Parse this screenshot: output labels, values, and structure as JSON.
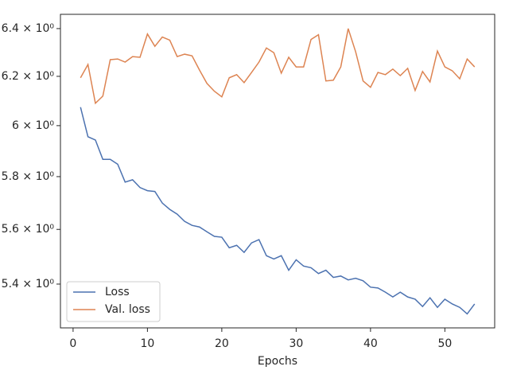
{
  "chart_data": {
    "type": "line",
    "x_label": "Epochs",
    "log_y": true,
    "grid": false,
    "legend_loc": "lower-left",
    "x": [
      1,
      2,
      3,
      4,
      5,
      6,
      7,
      8,
      9,
      10,
      11,
      12,
      13,
      14,
      15,
      16,
      17,
      18,
      19,
      20,
      21,
      22,
      23,
      24,
      25,
      26,
      27,
      28,
      29,
      30,
      31,
      32,
      33,
      34,
      35,
      36,
      37,
      38,
      39,
      40,
      41,
      42,
      43,
      44,
      45,
      46,
      47,
      48,
      49,
      50,
      51,
      52,
      53,
      54
    ],
    "series": [
      {
        "name": "Loss",
        "color": "#4c72b0",
        "values": [
          6.074,
          5.956,
          5.943,
          5.867,
          5.867,
          5.848,
          5.779,
          5.788,
          5.758,
          5.746,
          5.743,
          5.699,
          5.675,
          5.657,
          5.63,
          5.615,
          5.609,
          5.591,
          5.574,
          5.571,
          5.532,
          5.541,
          5.515,
          5.55,
          5.562,
          5.503,
          5.491,
          5.503,
          5.45,
          5.488,
          5.465,
          5.459,
          5.438,
          5.45,
          5.424,
          5.429,
          5.415,
          5.421,
          5.412,
          5.389,
          5.386,
          5.371,
          5.354,
          5.371,
          5.354,
          5.346,
          5.32,
          5.351,
          5.317,
          5.346,
          5.329,
          5.317,
          5.294,
          5.329
        ]
      },
      {
        "name": "Val. loss",
        "color": "#dd8452",
        "values": [
          6.194,
          6.249,
          6.09,
          6.119,
          6.269,
          6.272,
          6.259,
          6.282,
          6.279,
          6.377,
          6.325,
          6.364,
          6.351,
          6.282,
          6.292,
          6.285,
          6.226,
          6.171,
          6.139,
          6.116,
          6.194,
          6.207,
          6.174,
          6.216,
          6.259,
          6.318,
          6.298,
          6.213,
          6.279,
          6.239,
          6.239,
          6.354,
          6.374,
          6.181,
          6.184,
          6.239,
          6.4,
          6.302,
          6.181,
          6.155,
          6.216,
          6.207,
          6.23,
          6.203,
          6.233,
          6.142,
          6.22,
          6.177,
          6.305,
          6.239,
          6.223,
          6.19,
          6.272,
          6.239
        ]
      }
    ],
    "xlim": [
      -1.7,
      56.7
    ],
    "xticks": [
      0,
      10,
      20,
      30,
      40,
      50
    ],
    "ylim": [
      5.245,
      6.461
    ],
    "yticks": [
      {
        "value": 5.4,
        "label": "5.4 × 10⁰"
      },
      {
        "value": 5.6,
        "label": "5.6 × 10⁰"
      },
      {
        "value": 5.8,
        "label": "5.8 × 10⁰"
      },
      {
        "value": 6,
        "label": "6 × 10⁰"
      },
      {
        "value": 6.2,
        "label": "6.2 × 10⁰"
      },
      {
        "value": 6.4,
        "label": "6.4 × 10⁰"
      }
    ]
  }
}
